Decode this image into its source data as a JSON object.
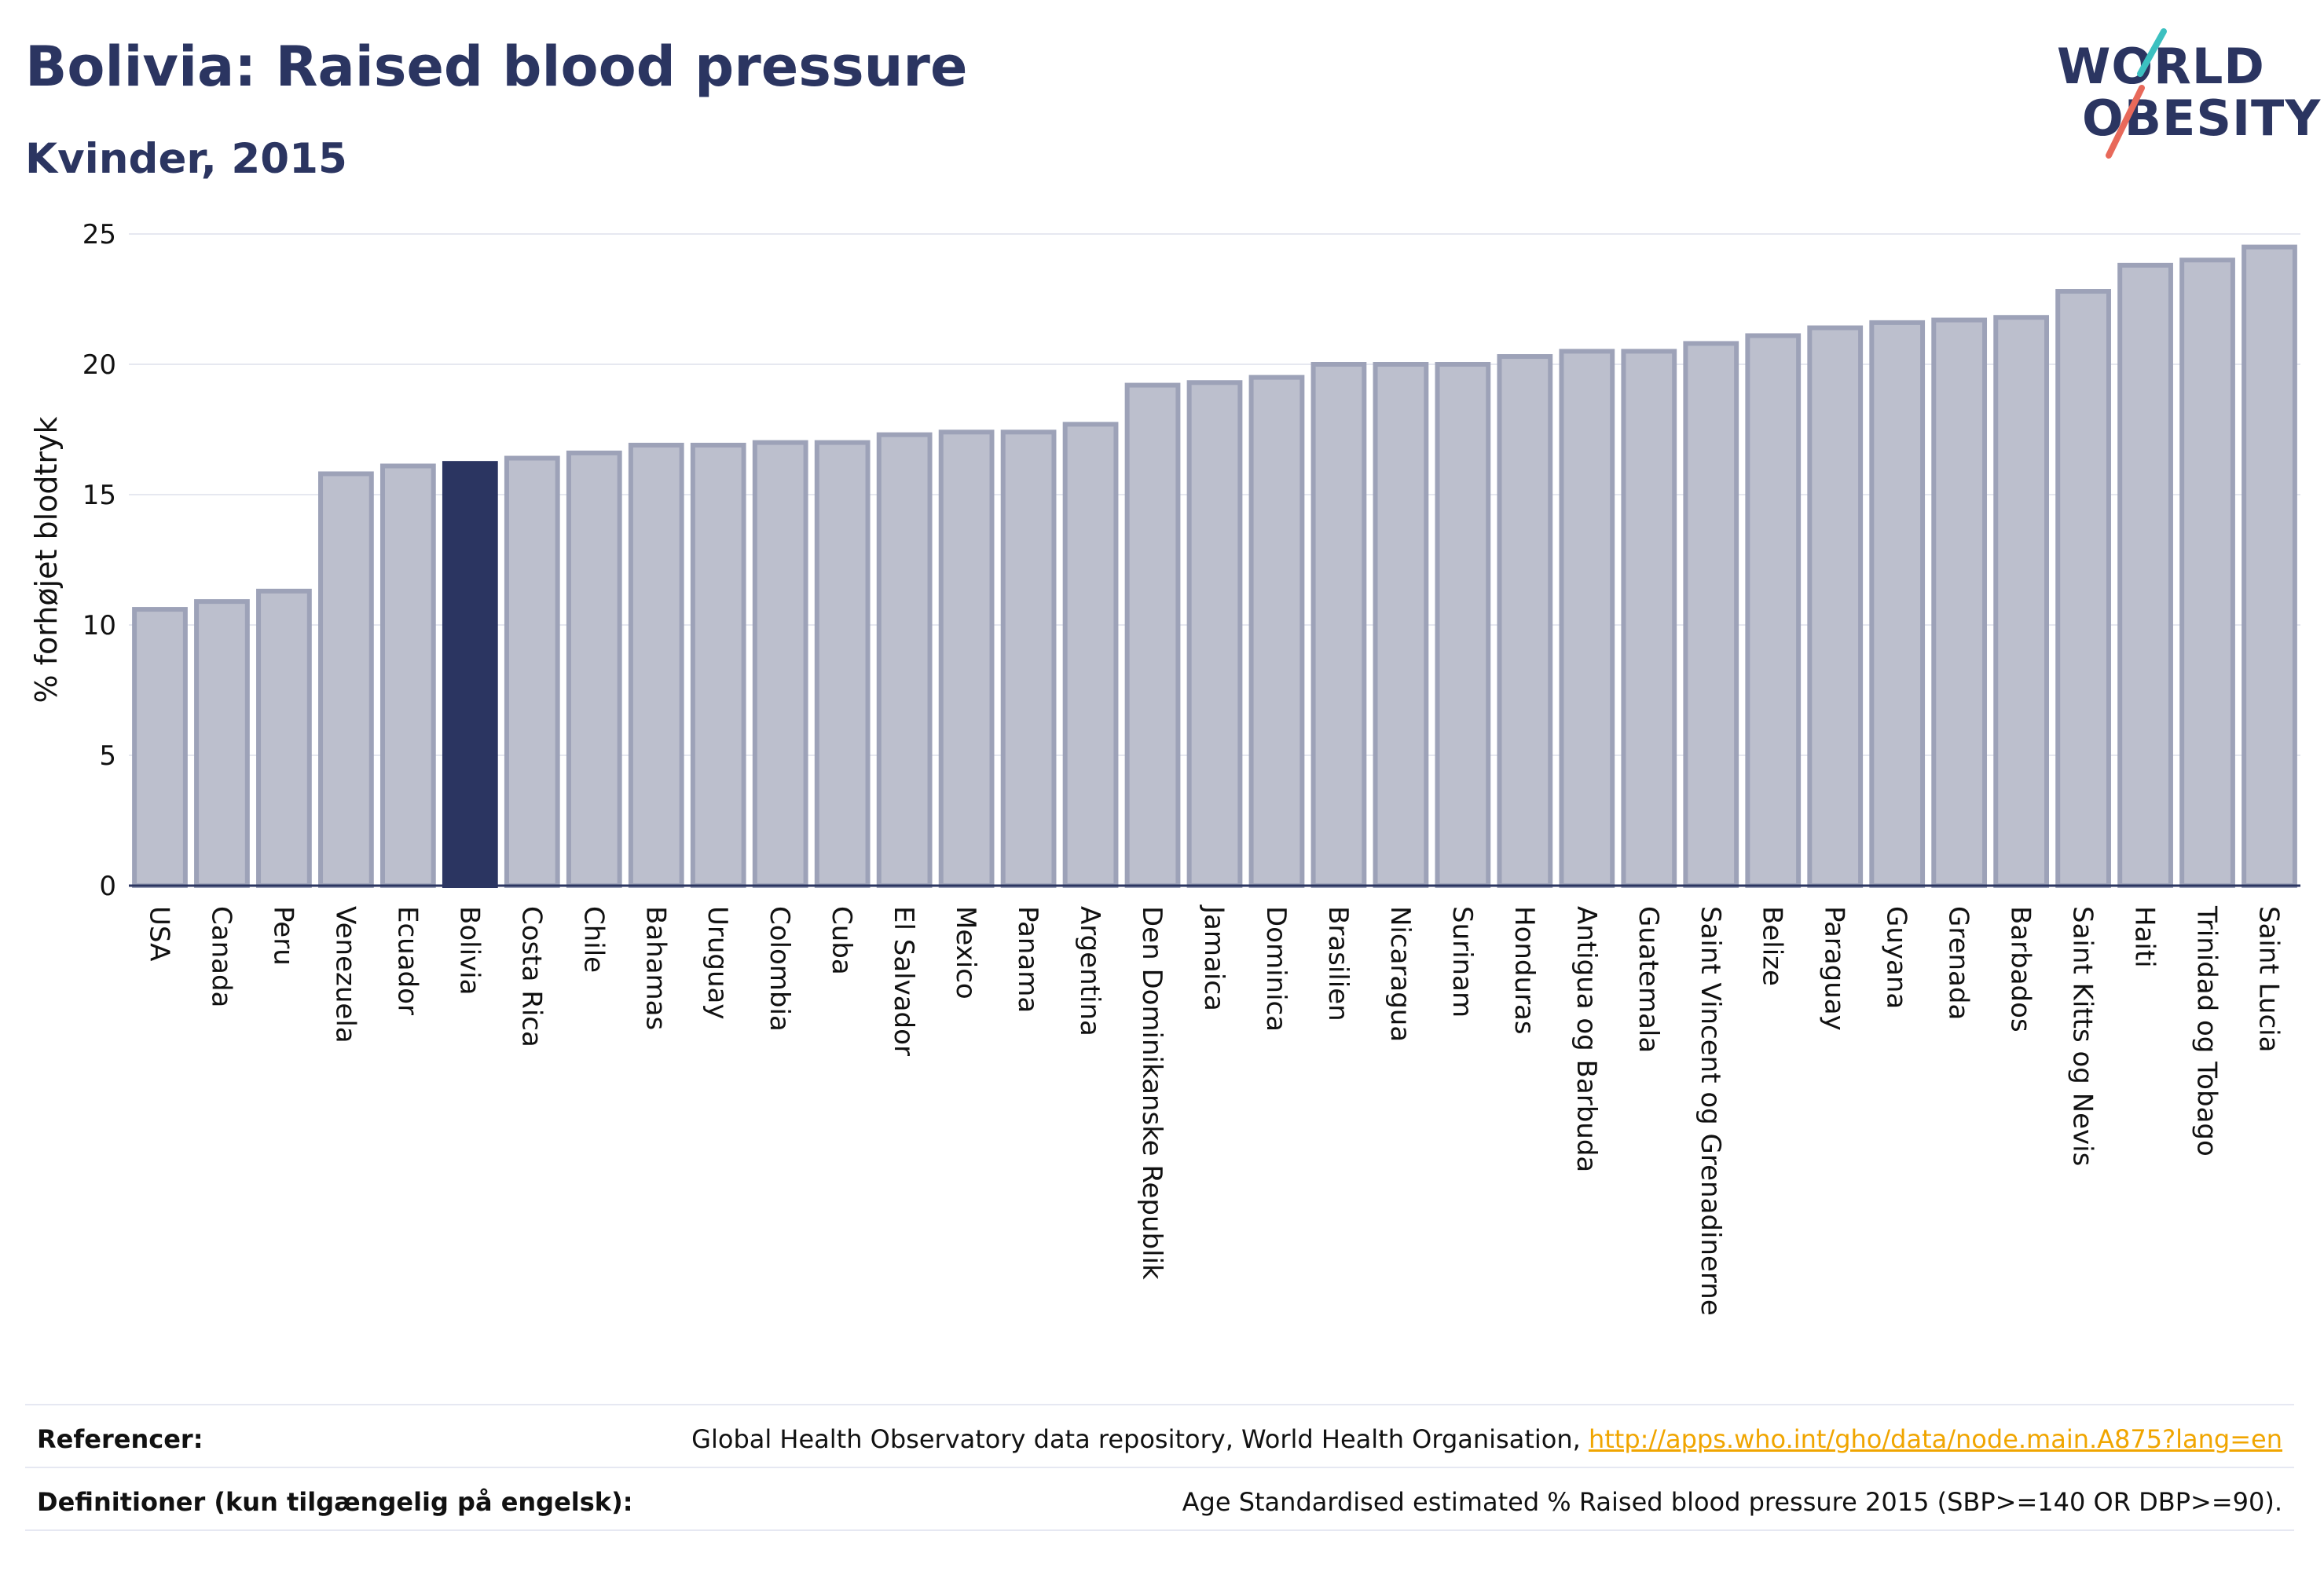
{
  "header": {
    "title": "Bolivia: Raised blood pressure",
    "subtitle": "Kvinder, 2015"
  },
  "logo": {
    "line1": "WORLD",
    "line2": "OBESITY",
    "slash_colors": [
      "#3cc0c0",
      "#e8695a"
    ]
  },
  "chart_data": {
    "type": "bar",
    "ylabel": "% forhøjet blodtryk",
    "xlabel": "",
    "ylim": [
      0,
      25
    ],
    "yticks": [
      0,
      5,
      10,
      15,
      20,
      25
    ],
    "grid": true,
    "highlight": "Bolivia",
    "colors": {
      "bar": "#bcbfcd",
      "bar_border": "#9da2b8",
      "highlight": "#2b3561",
      "grid": "#e6e8f0"
    },
    "categories": [
      "USA",
      "Canada",
      "Peru",
      "Venezuela",
      "Ecuador",
      "Bolivia",
      "Costa Rica",
      "Chile",
      "Bahamas",
      "Uruguay",
      "Colombia",
      "Cuba",
      "El Salvador",
      "Mexico",
      "Panama",
      "Argentina",
      "Den Dominikanske Republik",
      "Jamaica",
      "Dominica",
      "Brasilien",
      "Nicaragua",
      "Surinam",
      "Honduras",
      "Antigua og Barbuda",
      "Guatemala",
      "Saint Vincent og Grenadinerne",
      "Belize",
      "Paraguay",
      "Guyana",
      "Grenada",
      "Barbados",
      "Saint Kitts og Nevis",
      "Haiti",
      "Trinidad og Tobago",
      "Saint Lucia"
    ],
    "values": [
      10.6,
      10.9,
      11.3,
      15.8,
      16.1,
      16.2,
      16.4,
      16.6,
      16.9,
      16.9,
      17.0,
      17.0,
      17.3,
      17.4,
      17.4,
      17.7,
      19.2,
      19.3,
      19.5,
      20.0,
      20.0,
      20.0,
      20.3,
      20.5,
      20.5,
      20.8,
      21.1,
      21.4,
      21.6,
      21.7,
      21.8,
      22.8,
      23.8,
      24.0,
      24.5
    ]
  },
  "footer": {
    "references_label": "Referencer:",
    "references_text": "Global Health Observatory data repository, World Health Organisation, ",
    "references_link": "http://apps.who.int/gho/data/node.main.A875?lang=en",
    "definitions_label": "Definitioner (kun tilgængelig på engelsk):",
    "definitions_text": "Age Standardised estimated % Raised blood pressure 2015 (SBP>=140 OR DBP>=90)."
  }
}
